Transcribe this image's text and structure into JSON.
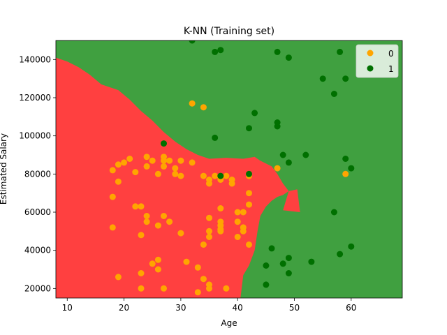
{
  "chart_data": {
    "type": "scatter",
    "title": "K-NN (Training set)",
    "xlabel": "Age",
    "ylabel": "Estimated Salary",
    "xlim": [
      8,
      69
    ],
    "ylim": [
      15000,
      150000
    ],
    "xticks": [
      10,
      20,
      30,
      40,
      50,
      60
    ],
    "xtick_labels": [
      "10",
      "20",
      "30",
      "40",
      "50",
      "60"
    ],
    "yticks": [
      20000,
      40000,
      60000,
      80000,
      100000,
      120000,
      140000
    ],
    "ytick_labels": [
      "20000",
      "40000",
      "60000",
      "80000",
      "100000",
      "120000",
      "140000"
    ],
    "legend": {
      "placement": "top-right"
    },
    "decision_regions": {
      "class_0_color": "#ff4040",
      "class_1_color": "#40a040",
      "class_0_region": [
        [
          8,
          15000
        ],
        [
          8,
          141000
        ],
        [
          10,
          139000
        ],
        [
          12,
          136000
        ],
        [
          14,
          132000
        ],
        [
          16,
          127000
        ],
        [
          19,
          124000
        ],
        [
          21,
          119000
        ],
        [
          23,
          113000
        ],
        [
          25,
          108000
        ],
        [
          27,
          102000
        ],
        [
          29,
          97000
        ],
        [
          31,
          93000
        ],
        [
          33,
          90000
        ],
        [
          35,
          88000
        ],
        [
          38,
          88500
        ],
        [
          41,
          88000
        ],
        [
          43,
          89000
        ],
        [
          44,
          87000
        ],
        [
          46,
          84000
        ],
        [
          47,
          80000
        ],
        [
          48,
          75000
        ],
        [
          49,
          71000
        ],
        [
          48,
          69000
        ],
        [
          47,
          68000
        ],
        [
          46,
          66000
        ],
        [
          45,
          63000
        ],
        [
          44,
          58000
        ],
        [
          43.5,
          50000
        ],
        [
          43,
          40000
        ],
        [
          42,
          32000
        ],
        [
          41,
          27000
        ],
        [
          40.5,
          15000
        ]
      ],
      "class_0_island": [
        [
          49,
          71000
        ],
        [
          50.5,
          72000
        ],
        [
          51,
          60000
        ],
        [
          48,
          61000
        ]
      ],
      "class_1_island": [
        [
          34,
          106000
        ],
        [
          35.5,
          112000
        ],
        [
          36,
          106000
        ]
      ]
    },
    "series": [
      {
        "name": "0",
        "color": "#ffa500",
        "x": [
          18,
          18,
          18,
          19,
          19,
          19,
          20,
          21,
          22,
          22,
          23,
          23,
          23,
          23,
          24,
          24,
          24,
          24,
          25,
          25,
          26,
          26,
          26,
          26,
          27,
          27,
          27,
          27,
          27,
          28,
          28,
          29,
          29,
          30,
          30,
          30,
          31,
          32,
          32,
          33,
          33,
          34,
          34,
          34,
          34,
          35,
          35,
          35,
          35,
          35,
          35,
          35,
          36,
          37,
          37,
          37,
          37,
          37,
          37,
          37,
          38,
          38,
          39,
          39,
          40,
          40,
          40,
          41,
          41,
          41,
          42,
          42,
          42,
          42,
          47,
          59
        ],
        "y": [
          82000,
          68000,
          52000,
          85000,
          76000,
          26000,
          86000,
          88000,
          81000,
          63000,
          63000,
          48000,
          28000,
          20000,
          89000,
          84000,
          58000,
          55000,
          33000,
          87000,
          80000,
          35000,
          30000,
          53000,
          89000,
          87000,
          84000,
          58000,
          20000,
          87000,
          55000,
          83000,
          80000,
          87000,
          79000,
          49000,
          34000,
          117000,
          86000,
          31000,
          18000,
          115000,
          43000,
          25000,
          79000,
          77000,
          75000,
          57000,
          50000,
          47000,
          22000,
          20000,
          79000,
          78000,
          77000,
          62000,
          55000,
          53000,
          51000,
          50000,
          20000,
          79000,
          77000,
          75000,
          60000,
          55000,
          47000,
          52000,
          50000,
          60000,
          79000,
          70000,
          64000,
          43000,
          83000,
          80000
        ]
      },
      {
        "name": "1",
        "color": "#007000",
        "x": [
          27,
          32,
          36,
          36,
          37,
          37,
          42,
          42,
          43,
          45,
          45,
          46,
          47,
          47,
          47,
          48,
          48,
          49,
          49,
          49,
          49,
          52,
          53,
          55,
          57,
          57,
          58,
          58,
          59,
          59,
          60,
          60
        ],
        "y": [
          96000,
          150000,
          99000,
          144000,
          145000,
          79000,
          104000,
          80000,
          112000,
          32000,
          22000,
          41000,
          144000,
          107000,
          105000,
          90000,
          33000,
          141000,
          86000,
          36000,
          28000,
          90000,
          34000,
          130000,
          122000,
          60000,
          144000,
          38000,
          130000,
          88000,
          83000,
          42000
        ]
      }
    ]
  }
}
